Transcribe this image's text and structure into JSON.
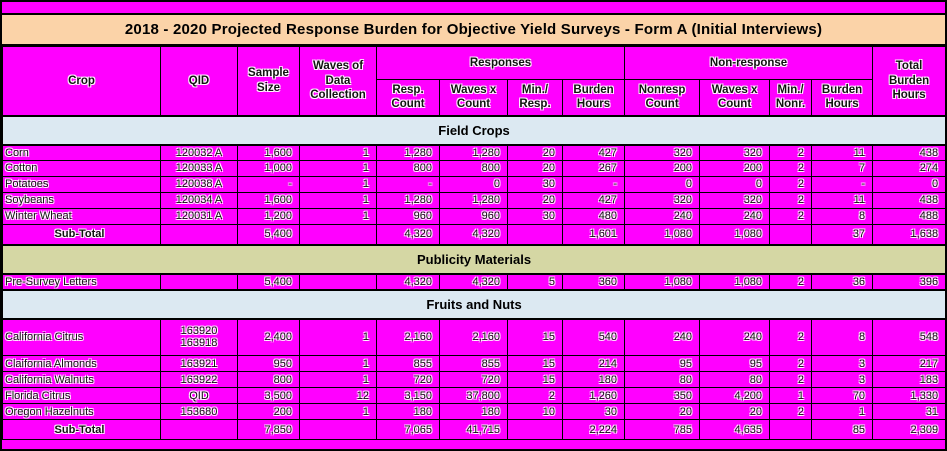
{
  "title": "2018 - 2020 Projected Response Burden for Objective Yield Surveys - Form A (Initial Interviews)",
  "colors": {
    "cell_magenta": "#FF00FF",
    "title_bg": "#FBD3A8",
    "band_blue": "#DCE9F2",
    "band_olive": "#D5D7A4",
    "border": "#000000"
  },
  "table": {
    "header": {
      "crop": "Crop",
      "qid": "QID",
      "sample_size": "Sample Size",
      "waves": "Waves of Data Collection",
      "responses_group": "Responses",
      "nonresponse_group": "Non-response",
      "resp_count": "Resp. Count",
      "resp_waves_x_count": "Waves x Count",
      "min_resp": "Min./ Resp.",
      "resp_burden_hours": "Burden Hours",
      "nonresp_count": "Nonresp Count",
      "nonresp_waves_x_count": "Waves x Count",
      "min_nonr": "Min./ Nonr.",
      "nonresp_burden_hours": "Burden Hours",
      "total_burden_hours": "Total Burden Hours"
    },
    "sections": [
      {
        "label": "Field Crops",
        "band": "blue",
        "rows": [
          [
            "Corn",
            "120032 A",
            "1,600",
            "1",
            "1,280",
            "1,280",
            "20",
            "427",
            "320",
            "320",
            "2",
            "11",
            "438"
          ],
          [
            "Cotton",
            "120033 A",
            "1,000",
            "1",
            "800",
            "800",
            "20",
            "267",
            "200",
            "200",
            "2",
            "7",
            "274"
          ],
          [
            "Potatoes",
            "120038 A",
            "-",
            "1",
            "-",
            "0",
            "30",
            "-",
            "0",
            "0",
            "2",
            "-",
            "0"
          ],
          [
            "Soybeans",
            "120034 A",
            "1,600",
            "1",
            "1,280",
            "1,280",
            "20",
            "427",
            "320",
            "320",
            "2",
            "11",
            "438"
          ],
          [
            "Winter Wheat",
            "120031 A",
            "1,200",
            "1",
            "960",
            "960",
            "30",
            "480",
            "240",
            "240",
            "2",
            "8",
            "488"
          ]
        ],
        "subtotal": [
          "Sub-Total",
          "",
          "5,400",
          "",
          "4,320",
          "4,320",
          "",
          "1,601",
          "1,080",
          "1,080",
          "",
          "37",
          "1,638"
        ]
      },
      {
        "label": "Publicity Materials",
        "band": "olive",
        "rows": [
          [
            "Pre-Survey Letters",
            "",
            "5,400",
            "",
            "4,320",
            "4,320",
            "5",
            "360",
            "1,080",
            "1,080",
            "2",
            "36",
            "396"
          ]
        ],
        "subtotal": null
      },
      {
        "label": "Fruits and Nuts",
        "band": "blue",
        "rows": [
          [
            "California Citrus",
            "163920\n163918",
            "2,400",
            "1",
            "2,160",
            "2,160",
            "15",
            "540",
            "240",
            "240",
            "2",
            "8",
            "548"
          ],
          [
            "Claifornia Almonds",
            "163921",
            "950",
            "1",
            "855",
            "855",
            "15",
            "214",
            "95",
            "95",
            "2",
            "3",
            "217"
          ],
          [
            "California Walnuts",
            "163922",
            "800",
            "1",
            "720",
            "720",
            "15",
            "180",
            "80",
            "80",
            "2",
            "3",
            "183"
          ],
          [
            "Florida Citrus",
            "QID",
            "3,500",
            "12",
            "3,150",
            "37,800",
            "2",
            "1,260",
            "350",
            "4,200",
            "1",
            "70",
            "1,330"
          ],
          [
            "Oregon Hazelnuts",
            "153680",
            "200",
            "1",
            "180",
            "180",
            "10",
            "30",
            "20",
            "20",
            "2",
            "1",
            "31"
          ]
        ],
        "subtotal": [
          "Sub-Total",
          "",
          "7,850",
          "",
          "7,065",
          "41,715",
          "",
          "2,224",
          "785",
          "4,635",
          "",
          "85",
          "2,309"
        ]
      }
    ]
  }
}
